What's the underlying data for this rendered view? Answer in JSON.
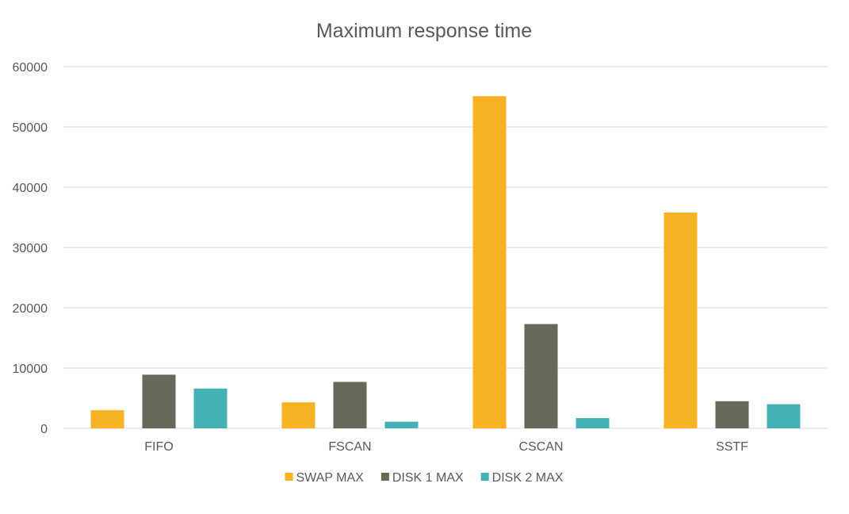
{
  "chart_data": {
    "type": "bar",
    "title": "Maximum response time",
    "xlabel": "",
    "ylabel": "",
    "categories": [
      "FIFO",
      "FSCAN",
      "CSCAN",
      "SSTF"
    ],
    "series": [
      {
        "name": "SWAP MAX",
        "color": "#f6b223",
        "values": [
          3000,
          4300,
          55100,
          35800
        ]
      },
      {
        "name": "DISK 1 MAX",
        "color": "#666a58",
        "values": [
          8900,
          7700,
          17300,
          4500
        ]
      },
      {
        "name": "DISK 2 MAX",
        "color": "#46b1b4",
        "values": [
          6600,
          1100,
          1700,
          4000
        ]
      }
    ],
    "ylim": [
      0,
      60000
    ],
    "yticks": [
      0,
      10000,
      20000,
      30000,
      40000,
      50000,
      60000
    ],
    "grid": true,
    "legend_position": "bottom"
  }
}
